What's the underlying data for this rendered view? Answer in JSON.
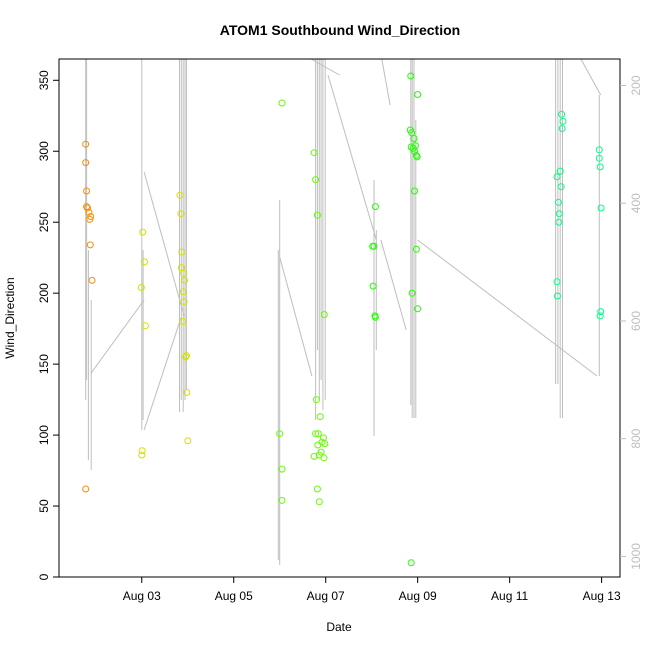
{
  "chart_data": {
    "type": "scatter",
    "title": "ATOM1 Southbound Wind_Direction",
    "xlabel": "Date",
    "ylabel": "Wind_Direction",
    "x_ticks": [
      "Aug 03",
      "Aug 05",
      "Aug 07",
      "Aug 09",
      "Aug 11",
      "Aug 13"
    ],
    "x_tick_values": [
      3,
      5,
      7,
      9,
      11,
      13
    ],
    "xlim": [
      1.2,
      13.4
    ],
    "y_ticks": [
      0,
      50,
      100,
      150,
      200,
      250,
      300,
      350
    ],
    "ylim": [
      0,
      365
    ],
    "secondary_axis": {
      "side": "right",
      "color": "#bebebe",
      "ticks": [
        200,
        400,
        600,
        800,
        1000
      ],
      "lim": [
        1035,
        155
      ],
      "reversed": true
    },
    "colors": {
      "gray_line": "#bebebe",
      "axis": "#000000"
    },
    "series": [
      {
        "color": "#ff8c00",
        "points": [
          [
            1.78,
            305
          ],
          [
            1.78,
            292
          ],
          [
            1.8,
            272
          ],
          [
            1.8,
            261
          ],
          [
            1.82,
            260
          ],
          [
            1.85,
            257
          ],
          [
            1.87,
            252
          ],
          [
            1.89,
            254
          ],
          [
            1.88,
            234
          ],
          [
            1.92,
            209
          ],
          [
            1.78,
            62
          ]
        ]
      },
      {
        "color": "#d4e000",
        "points": [
          [
            3.02,
            243
          ],
          [
            3.06,
            222
          ],
          [
            2.99,
            204
          ],
          [
            3.08,
            177
          ],
          [
            3.01,
            89
          ],
          [
            3.0,
            86
          ],
          [
            3.83,
            269
          ],
          [
            3.85,
            256
          ],
          [
            3.87,
            229
          ],
          [
            3.86,
            218
          ],
          [
            3.91,
            214
          ],
          [
            3.93,
            209
          ],
          [
            3.9,
            201
          ],
          [
            3.92,
            194
          ],
          [
            3.89,
            180
          ],
          [
            3.95,
            155
          ],
          [
            3.97,
            156
          ],
          [
            3.98,
            130
          ],
          [
            4.0,
            96
          ]
        ]
      },
      {
        "color": "#66ff00",
        "points": [
          [
            6.05,
            334
          ],
          [
            6.0,
            101
          ],
          [
            6.05,
            76
          ],
          [
            6.05,
            54
          ],
          [
            6.75,
            299
          ],
          [
            6.78,
            280
          ],
          [
            6.82,
            255
          ],
          [
            6.97,
            185
          ],
          [
            6.8,
            125
          ],
          [
            6.88,
            113
          ],
          [
            6.78,
            101
          ],
          [
            6.84,
            101
          ],
          [
            6.95,
            98
          ],
          [
            6.92,
            95
          ],
          [
            6.98,
            94
          ],
          [
            6.83,
            93
          ],
          [
            6.9,
            88
          ],
          [
            6.75,
            85
          ],
          [
            6.86,
            86
          ],
          [
            6.96,
            84
          ],
          [
            6.82,
            62
          ],
          [
            6.86,
            53
          ]
        ]
      },
      {
        "color": "#22ff00",
        "points": [
          [
            8.02,
            233
          ],
          [
            8.05,
            233
          ],
          [
            8.08,
            261
          ],
          [
            8.03,
            205
          ],
          [
            8.07,
            184
          ],
          [
            8.08,
            183
          ],
          [
            8.85,
            353
          ],
          [
            8.84,
            315
          ],
          [
            8.87,
            313
          ],
          [
            8.92,
            309
          ],
          [
            8.86,
            303
          ],
          [
            8.9,
            302
          ],
          [
            8.93,
            300
          ],
          [
            8.95,
            304
          ],
          [
            8.97,
            297
          ],
          [
            8.99,
            296
          ],
          [
            9.0,
            340
          ],
          [
            8.93,
            272
          ],
          [
            8.97,
            231
          ],
          [
            8.88,
            200
          ],
          [
            9.0,
            189
          ],
          [
            8.86,
            10
          ]
        ]
      },
      {
        "color": "#00ff88",
        "points": [
          [
            12.13,
            326
          ],
          [
            12.16,
            321
          ],
          [
            12.14,
            316
          ],
          [
            12.1,
            286
          ],
          [
            12.03,
            282
          ],
          [
            12.12,
            275
          ],
          [
            12.06,
            264
          ],
          [
            12.08,
            256
          ],
          [
            12.07,
            250
          ],
          [
            12.03,
            208
          ],
          [
            12.04,
            198
          ],
          [
            12.95,
            301
          ],
          [
            12.95,
            295
          ],
          [
            12.97,
            289
          ],
          [
            12.99,
            260
          ],
          [
            12.98,
            187
          ],
          [
            12.97,
            184
          ]
        ]
      }
    ]
  }
}
